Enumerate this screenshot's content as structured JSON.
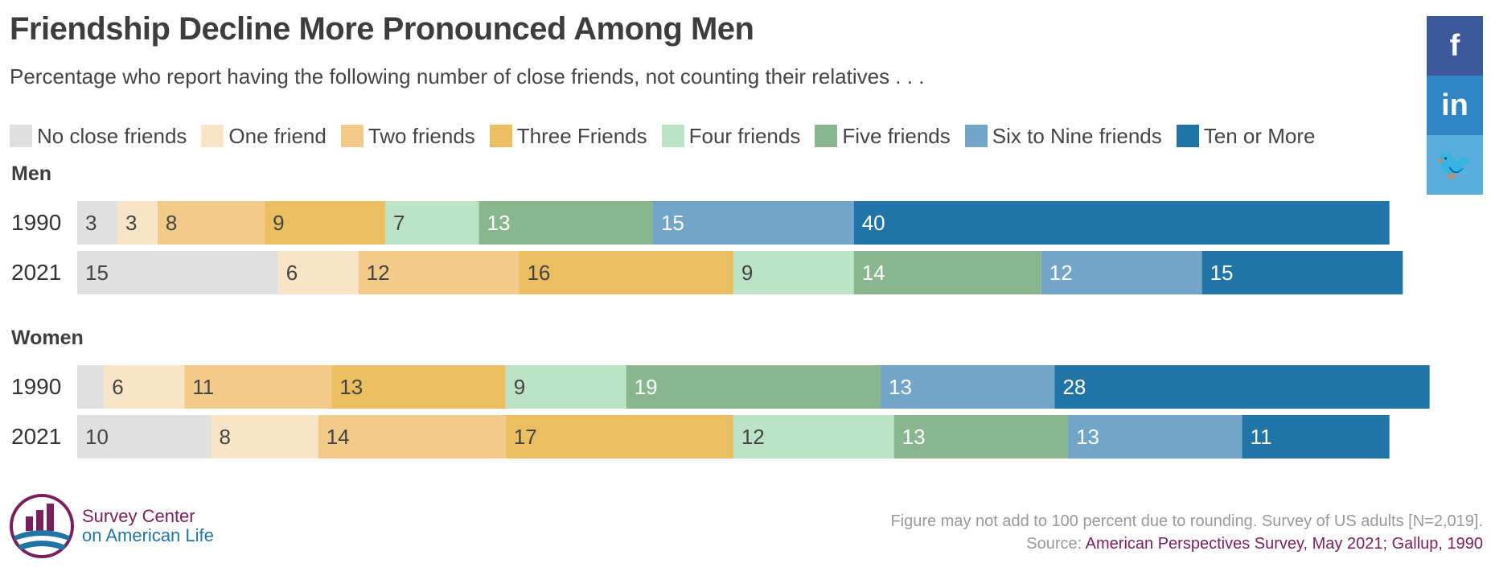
{
  "header": {
    "title": "Friendship Decline More Pronounced Among Men",
    "subtitle": "Percentage who report having the following number of close friends, not counting their relatives . . ."
  },
  "legend": [
    {
      "label": "No close friends",
      "color": "#e0e0e0"
    },
    {
      "label": "One friend",
      "color": "#f8e4c6"
    },
    {
      "label": "Two friends",
      "color": "#f2cb8a"
    },
    {
      "label": "Three Friends",
      "color": "#ebbe62"
    },
    {
      "label": "Four friends",
      "color": "#bde3c6"
    },
    {
      "label": "Five friends",
      "color": "#89b58f"
    },
    {
      "label": "Six to Nine friends",
      "color": "#73a5c9"
    },
    {
      "label": "Ten or More",
      "color": "#2174a6"
    }
  ],
  "chart_data": {
    "type": "bar",
    "orientation": "horizontal",
    "stacked": true,
    "title": "Friendship Decline More Pronounced Among Men",
    "subtitle": "Percentage who report having the following number of close friends, not counting their relatives . . .",
    "groups": [
      {
        "name": "Men",
        "rows": [
          {
            "label": "1990",
            "values": [
              3,
              3,
              8,
              9,
              7,
              13,
              15,
              40
            ]
          },
          {
            "label": "2021",
            "values": [
              15,
              6,
              12,
              16,
              9,
              14,
              12,
              15
            ]
          }
        ]
      },
      {
        "name": "Women",
        "rows": [
          {
            "label": "1990",
            "values": [
              2,
              6,
              11,
              13,
              9,
              19,
              13,
              28
            ]
          },
          {
            "label": "2021",
            "values": [
              10,
              8,
              14,
              17,
              12,
              13,
              13,
              11
            ]
          }
        ]
      }
    ],
    "value_labels_hidden": [
      [],
      [],
      [
        0
      ],
      []
    ],
    "series": [
      "No close friends",
      "One friend",
      "Two friends",
      "Three Friends",
      "Four friends",
      "Five friends",
      "Six to Nine friends",
      "Ten or More"
    ],
    "label_colors": [
      "#444444",
      "#444444",
      "#444444",
      "#444444",
      "#444444",
      "#ffffff",
      "#ffffff",
      "#ffffff"
    ],
    "legend_position": "top",
    "grid": false
  },
  "social": [
    {
      "glyph": "f",
      "icon": "facebook-icon",
      "color": "#3b5998"
    },
    {
      "glyph": "in",
      "icon": "linkedin-icon",
      "color": "#2f84c1"
    },
    {
      "glyph": "🐦",
      "icon": "twitter-icon",
      "color": "#5aaedd"
    }
  ],
  "logo": {
    "line1": "Survey Center",
    "line2": "on American Life"
  },
  "footer": {
    "note": "Figure may not add to 100 percent due to rounding. Survey of US adults [N=2,019].",
    "source_prefix": "Source:",
    "source_text": "American Perspectives Survey, May 2021; Gallup, 1990"
  }
}
